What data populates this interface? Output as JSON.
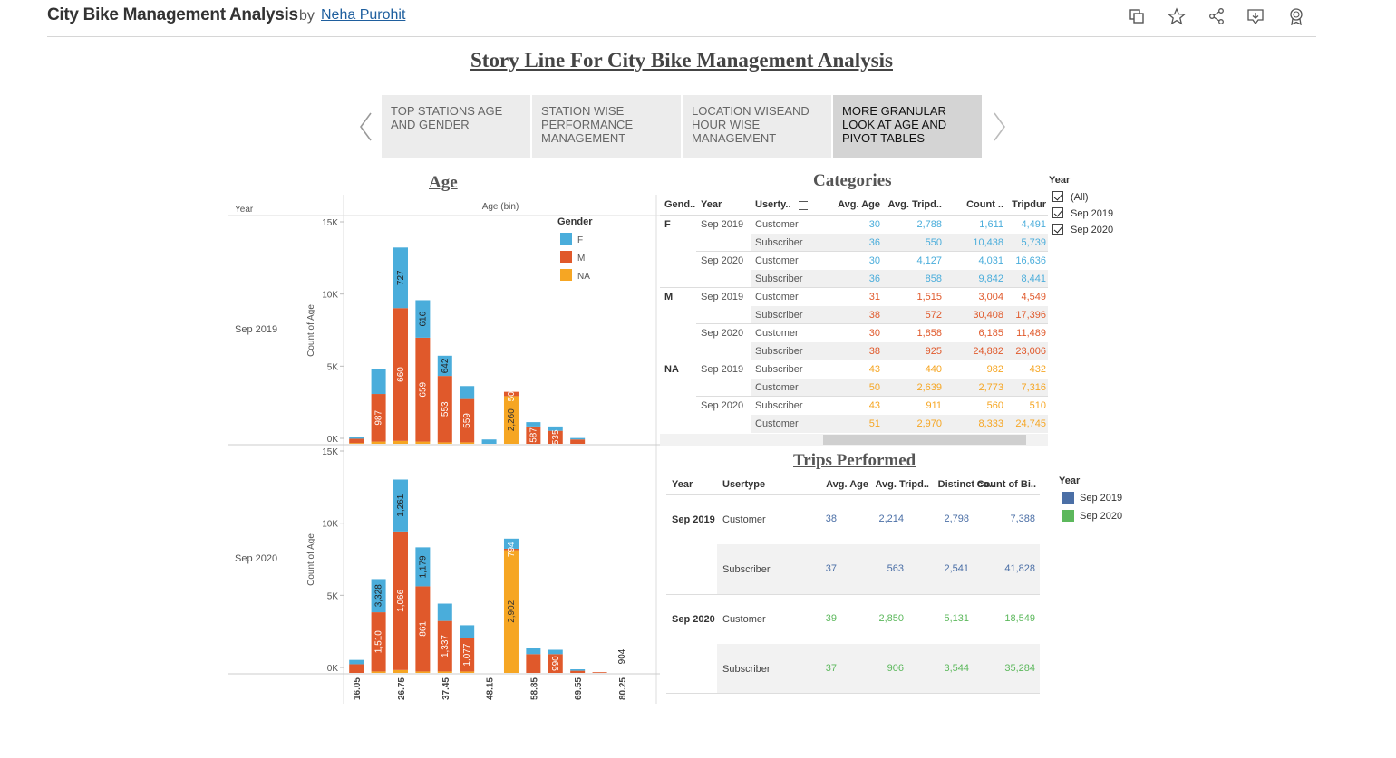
{
  "header": {
    "title": "City Bike Management Analysis",
    "by": "by",
    "author": "Neha Purohit"
  },
  "icons": [
    "copy-icon",
    "star-icon",
    "share-icon",
    "download-icon",
    "award-icon"
  ],
  "story": {
    "title": "Story Line For City Bike Management Analysis",
    "tabs": [
      {
        "label": "TOP STATIONS AGE AND GENDER"
      },
      {
        "label": "STATION WISE PERFORMANCE MANAGEMENT"
      },
      {
        "label": "LOCATION WISEAND HOUR WISE MANAGEMENT"
      },
      {
        "label": "MORE GRANULAR LOOK AT AGE AND PIVOT TABLES",
        "active": true
      }
    ]
  },
  "age": {
    "title": "Age",
    "col_year": "Year",
    "col_bin": "Age (bin)",
    "ylabel": "Count of Age",
    "legend_title": "Gender",
    "legend": [
      {
        "name": "F",
        "color": "#4aaddb"
      },
      {
        "name": "M",
        "color": "#e0592b"
      },
      {
        "name": "NA",
        "color": "#f6a623"
      }
    ],
    "panels": [
      {
        "name": "Sep 2019"
      },
      {
        "name": "Sep 2020"
      }
    ],
    "yticks": [
      "15K",
      "10K",
      "5K",
      "0K"
    ]
  },
  "chart_data": {
    "type": "bar",
    "title": "Age",
    "xlabel": "Age (bin)",
    "ylabel": "Count of Age",
    "categories": [
      "16.05",
      "",
      "26.75",
      "",
      "37.45",
      "",
      "48.15",
      "",
      "58.85",
      "",
      "69.55",
      "",
      "80.25",
      ""
    ],
    "tick_labels": [
      "16.05",
      "26.75",
      "37.45",
      "48.15",
      "58.85",
      "69.55",
      "80.25"
    ],
    "ylim": [
      0,
      15000
    ],
    "panels": [
      {
        "name": "Sep 2019",
        "series": [
          {
            "name": "M",
            "values": [
              300,
              3300,
              9200,
              7200,
              4600,
              3000,
              0,
              300,
              1200,
              900,
              300,
              0,
              0,
              0
            ]
          },
          {
            "name": "F",
            "values": [
              100,
              1700,
              4200,
              2600,
              1400,
              900,
              300,
              0,
              300,
              300,
              100,
              0,
              0,
              0
            ]
          },
          {
            "name": "NA",
            "values": [
              50,
              150,
              200,
              150,
              100,
              100,
              0,
              3300,
              0,
              0,
              0,
              0,
              0,
              0
            ]
          }
        ],
        "labels": [
          null,
          {
            "v": "987",
            "s": "M"
          },
          {
            "v": "660",
            "s": "M"
          },
          {
            "v": "659",
            "s": "M"
          },
          {
            "v": "553",
            "s": "M"
          },
          {
            "v": "559",
            "s": "M"
          },
          null,
          {
            "v": "2,260",
            "s": "NA"
          },
          {
            "v": "587",
            "s": "M"
          },
          {
            "v": "535",
            "s": "M"
          },
          null,
          null,
          null,
          null
        ],
        "top_labels": [
          null,
          null,
          {
            "v": "727",
            "s": "F"
          },
          {
            "v": "616",
            "s": "F"
          },
          {
            "v": "642",
            "s": "F"
          },
          null,
          null,
          {
            "v": "500",
            "s": "M"
          },
          null,
          null,
          null,
          null,
          null,
          null
        ]
      },
      {
        "name": "Sep 2020",
        "series": [
          {
            "name": "M",
            "values": [
              600,
              4100,
              9600,
              5900,
              3500,
              2300,
              0,
              100,
              1300,
              1300,
              150,
              50,
              0,
              0
            ]
          },
          {
            "name": "F",
            "values": [
              300,
              2300,
              3600,
              2700,
              1200,
              900,
              0,
              700,
              400,
              300,
              100,
              0,
              0,
              0
            ]
          },
          {
            "name": "NA",
            "values": [
              0,
              100,
              200,
              100,
              100,
              100,
              0,
              8500,
              0,
              0,
              0,
              0,
              0,
              0
            ]
          }
        ],
        "labels": [
          null,
          {
            "v": "1,510",
            "s": "M"
          },
          {
            "v": "1,066",
            "s": "M"
          },
          {
            "v": "861",
            "s": "M"
          },
          {
            "v": "1,337",
            "s": "M"
          },
          {
            "v": "1,077",
            "s": "M"
          },
          null,
          {
            "v": "2,902",
            "s": "NA"
          },
          null,
          {
            "v": "990",
            "s": "M"
          },
          null,
          null,
          null,
          null
        ],
        "top_labels": [
          null,
          {
            "v": "3,328",
            "s": "F"
          },
          {
            "v": "1,261",
            "s": "F"
          },
          {
            "v": "1,179",
            "s": "F"
          },
          null,
          null,
          null,
          {
            "v": "794",
            "s": "M"
          },
          null,
          null,
          null,
          null,
          {
            "v": "904",
            "s": "x"
          },
          null
        ]
      }
    ]
  },
  "categories": {
    "title": "Categories",
    "headers": [
      "Gend..",
      "Year",
      "Userty..",
      "Avg. Age",
      "Avg. Tripd..",
      "Count ..",
      "Tripdur"
    ],
    "rows": [
      {
        "g": "F",
        "y": "Sep 2019",
        "u": "Customer",
        "age": "30",
        "trip": "2,788",
        "count": "1,611",
        "dur": "4,491",
        "c": "f"
      },
      {
        "g": "",
        "y": "",
        "u": "Subscriber",
        "age": "36",
        "trip": "550",
        "count": "10,438",
        "dur": "5,739",
        "c": "f"
      },
      {
        "g": "",
        "y": "Sep 2020",
        "u": "Customer",
        "age": "30",
        "trip": "4,127",
        "count": "4,031",
        "dur": "16,636",
        "c": "f"
      },
      {
        "g": "",
        "y": "",
        "u": "Subscriber",
        "age": "36",
        "trip": "858",
        "count": "9,842",
        "dur": "8,441",
        "c": "f"
      },
      {
        "g": "M",
        "y": "Sep 2019",
        "u": "Customer",
        "age": "31",
        "trip": "1,515",
        "count": "3,004",
        "dur": "4,549",
        "c": "m"
      },
      {
        "g": "",
        "y": "",
        "u": "Subscriber",
        "age": "38",
        "trip": "572",
        "count": "30,408",
        "dur": "17,396",
        "c": "m"
      },
      {
        "g": "",
        "y": "Sep 2020",
        "u": "Customer",
        "age": "30",
        "trip": "1,858",
        "count": "6,185",
        "dur": "11,489",
        "c": "m"
      },
      {
        "g": "",
        "y": "",
        "u": "Subscriber",
        "age": "38",
        "trip": "925",
        "count": "24,882",
        "dur": "23,006",
        "c": "m"
      },
      {
        "g": "NA",
        "y": "Sep 2019",
        "u": "Subscriber",
        "age": "43",
        "trip": "440",
        "count": "982",
        "dur": "432",
        "c": "na"
      },
      {
        "g": "",
        "y": "",
        "u": "Customer",
        "age": "50",
        "trip": "2,639",
        "count": "2,773",
        "dur": "7,316",
        "c": "na"
      },
      {
        "g": "",
        "y": "Sep 2020",
        "u": "Subscriber",
        "age": "43",
        "trip": "911",
        "count": "560",
        "dur": "510",
        "c": "na"
      },
      {
        "g": "",
        "y": "",
        "u": "Customer",
        "age": "51",
        "trip": "2,970",
        "count": "8,333",
        "dur": "24,745",
        "c": "na"
      }
    ]
  },
  "year_filter": {
    "title": "Year",
    "options": [
      {
        "label": "(All)"
      },
      {
        "label": "Sep 2019"
      },
      {
        "label": "Sep 2020"
      }
    ]
  },
  "trips": {
    "title": "Trips Performed",
    "headers": [
      "Year",
      "Usertype",
      "Avg. Age",
      "Avg. Tripd..",
      "Distinct co..",
      "Count of Bi.."
    ],
    "rows": [
      {
        "y": "Sep 2019",
        "u": "Customer",
        "age": "38",
        "trip": "2,214",
        "distinct": "2,798",
        "count": "7,388",
        "c": "blue"
      },
      {
        "y": "",
        "u": "Subscriber",
        "age": "37",
        "trip": "563",
        "distinct": "2,541",
        "count": "41,828",
        "c": "blue"
      },
      {
        "y": "Sep 2020",
        "u": "Customer",
        "age": "39",
        "trip": "2,850",
        "distinct": "5,131",
        "count": "18,549",
        "c": "green"
      },
      {
        "y": "",
        "u": "Subscriber",
        "age": "37",
        "trip": "906",
        "distinct": "3,544",
        "count": "35,284",
        "c": "green"
      }
    ]
  },
  "year_legend": {
    "title": "Year",
    "items": [
      {
        "label": "Sep 2019",
        "color": "#4b6fa6"
      },
      {
        "label": "Sep 2020",
        "color": "#5cb85c"
      }
    ]
  }
}
